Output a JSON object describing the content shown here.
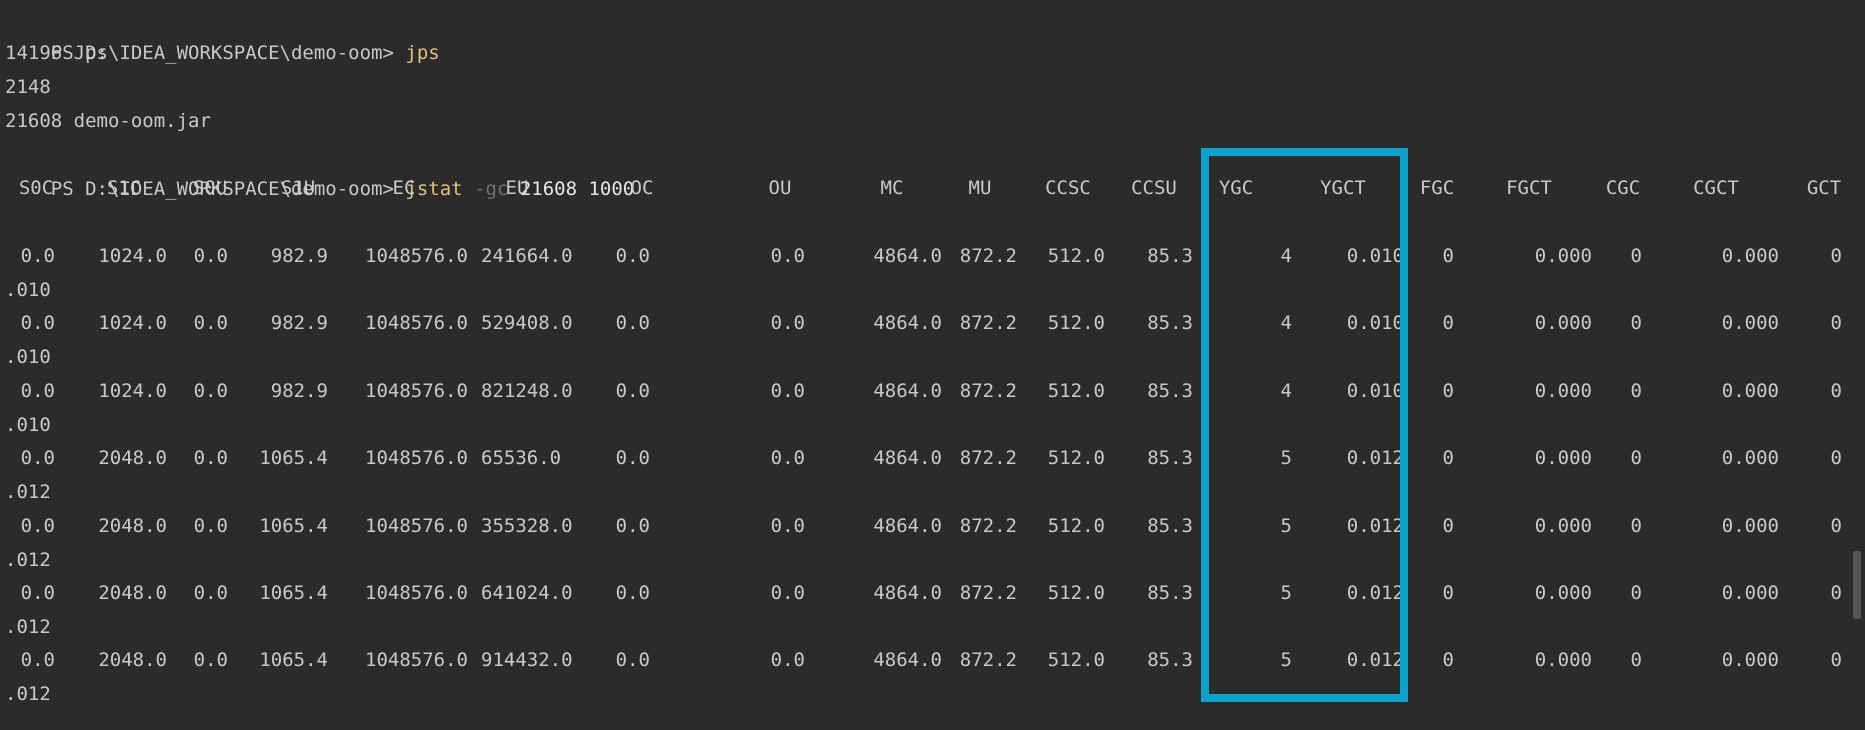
{
  "terminal": {
    "prompt": "PS D:\\IDEA_WORKSPACE\\demo-oom> ",
    "cmd1": "jps",
    "jps_output": [
      "14196 Jps",
      "2148",
      "21608 demo-oom.jar"
    ],
    "cmd2": {
      "name": "jstat",
      "flag": "-gc",
      "args": "21608 1000"
    },
    "columns": [
      "S0C",
      "S1C",
      "S0U",
      "S1U",
      "EC",
      "EU",
      "OC",
      "OU",
      "MC",
      "MU",
      "CCSC",
      "CCSU",
      "YGC",
      "YGCT",
      "FGC",
      "FGCT",
      "CGC",
      "CGCT",
      "GCT"
    ],
    "rows": [
      {
        "S0C": "0.0",
        "S1C": "1024.0",
        "S0U": "0.0",
        "S1U": "982.9",
        "EC": "1048576.0",
        "EU": "241664.0",
        "OC": "0.0",
        "OU": "0.0",
        "MC": "4864.0",
        "MU": "872.2",
        "CCSC": "512.0",
        "CCSU": "85.3",
        "YGC": "4",
        "YGCT": "0.010",
        "FGC": "0",
        "FGCT": "0.000",
        "CGC": "0",
        "CGCT": "0.000",
        "GCT_head": "0",
        "GCT_tail": ".010"
      },
      {
        "S0C": "0.0",
        "S1C": "1024.0",
        "S0U": "0.0",
        "S1U": "982.9",
        "EC": "1048576.0",
        "EU": "529408.0",
        "OC": "0.0",
        "OU": "0.0",
        "MC": "4864.0",
        "MU": "872.2",
        "CCSC": "512.0",
        "CCSU": "85.3",
        "YGC": "4",
        "YGCT": "0.010",
        "FGC": "0",
        "FGCT": "0.000",
        "CGC": "0",
        "CGCT": "0.000",
        "GCT_head": "0",
        "GCT_tail": ".010"
      },
      {
        "S0C": "0.0",
        "S1C": "1024.0",
        "S0U": "0.0",
        "S1U": "982.9",
        "EC": "1048576.0",
        "EU": "821248.0",
        "OC": "0.0",
        "OU": "0.0",
        "MC": "4864.0",
        "MU": "872.2",
        "CCSC": "512.0",
        "CCSU": "85.3",
        "YGC": "4",
        "YGCT": "0.010",
        "FGC": "0",
        "FGCT": "0.000",
        "CGC": "0",
        "CGCT": "0.000",
        "GCT_head": "0",
        "GCT_tail": ".010"
      },
      {
        "S0C": "0.0",
        "S1C": "2048.0",
        "S0U": "0.0",
        "S1U": "1065.4",
        "EC": "1048576.0",
        "EU": "65536.0",
        "OC": "0.0",
        "OU": "0.0",
        "MC": "4864.0",
        "MU": "872.2",
        "CCSC": "512.0",
        "CCSU": "85.3",
        "YGC": "5",
        "YGCT": "0.012",
        "FGC": "0",
        "FGCT": "0.000",
        "CGC": "0",
        "CGCT": "0.000",
        "GCT_head": "0",
        "GCT_tail": ".012"
      },
      {
        "S0C": "0.0",
        "S1C": "2048.0",
        "S0U": "0.0",
        "S1U": "1065.4",
        "EC": "1048576.0",
        "EU": "355328.0",
        "OC": "0.0",
        "OU": "0.0",
        "MC": "4864.0",
        "MU": "872.2",
        "CCSC": "512.0",
        "CCSU": "85.3",
        "YGC": "5",
        "YGCT": "0.012",
        "FGC": "0",
        "FGCT": "0.000",
        "CGC": "0",
        "CGCT": "0.000",
        "GCT_head": "0",
        "GCT_tail": ".012"
      },
      {
        "S0C": "0.0",
        "S1C": "2048.0",
        "S0U": "0.0",
        "S1U": "1065.4",
        "EC": "1048576.0",
        "EU": "641024.0",
        "OC": "0.0",
        "OU": "0.0",
        "MC": "4864.0",
        "MU": "872.2",
        "CCSC": "512.0",
        "CCSU": "85.3",
        "YGC": "5",
        "YGCT": "0.012",
        "FGC": "0",
        "FGCT": "0.000",
        "CGC": "0",
        "CGCT": "0.000",
        "GCT_head": "0",
        "GCT_tail": ".012"
      },
      {
        "S0C": "0.0",
        "S1C": "2048.0",
        "S0U": "0.0",
        "S1U": "1065.4",
        "EC": "1048576.0",
        "EU": "914432.0",
        "OC": "0.0",
        "OU": "0.0",
        "MC": "4864.0",
        "MU": "872.2",
        "CCSC": "512.0",
        "CCSU": "85.3",
        "YGC": "5",
        "YGCT": "0.012",
        "FGC": "0",
        "FGCT": "0.000",
        "CGC": "0",
        "CGCT": "0.000",
        "GCT_head": "0",
        "GCT_tail": ".012"
      }
    ],
    "highlight_color": "#0aa3cc"
  }
}
